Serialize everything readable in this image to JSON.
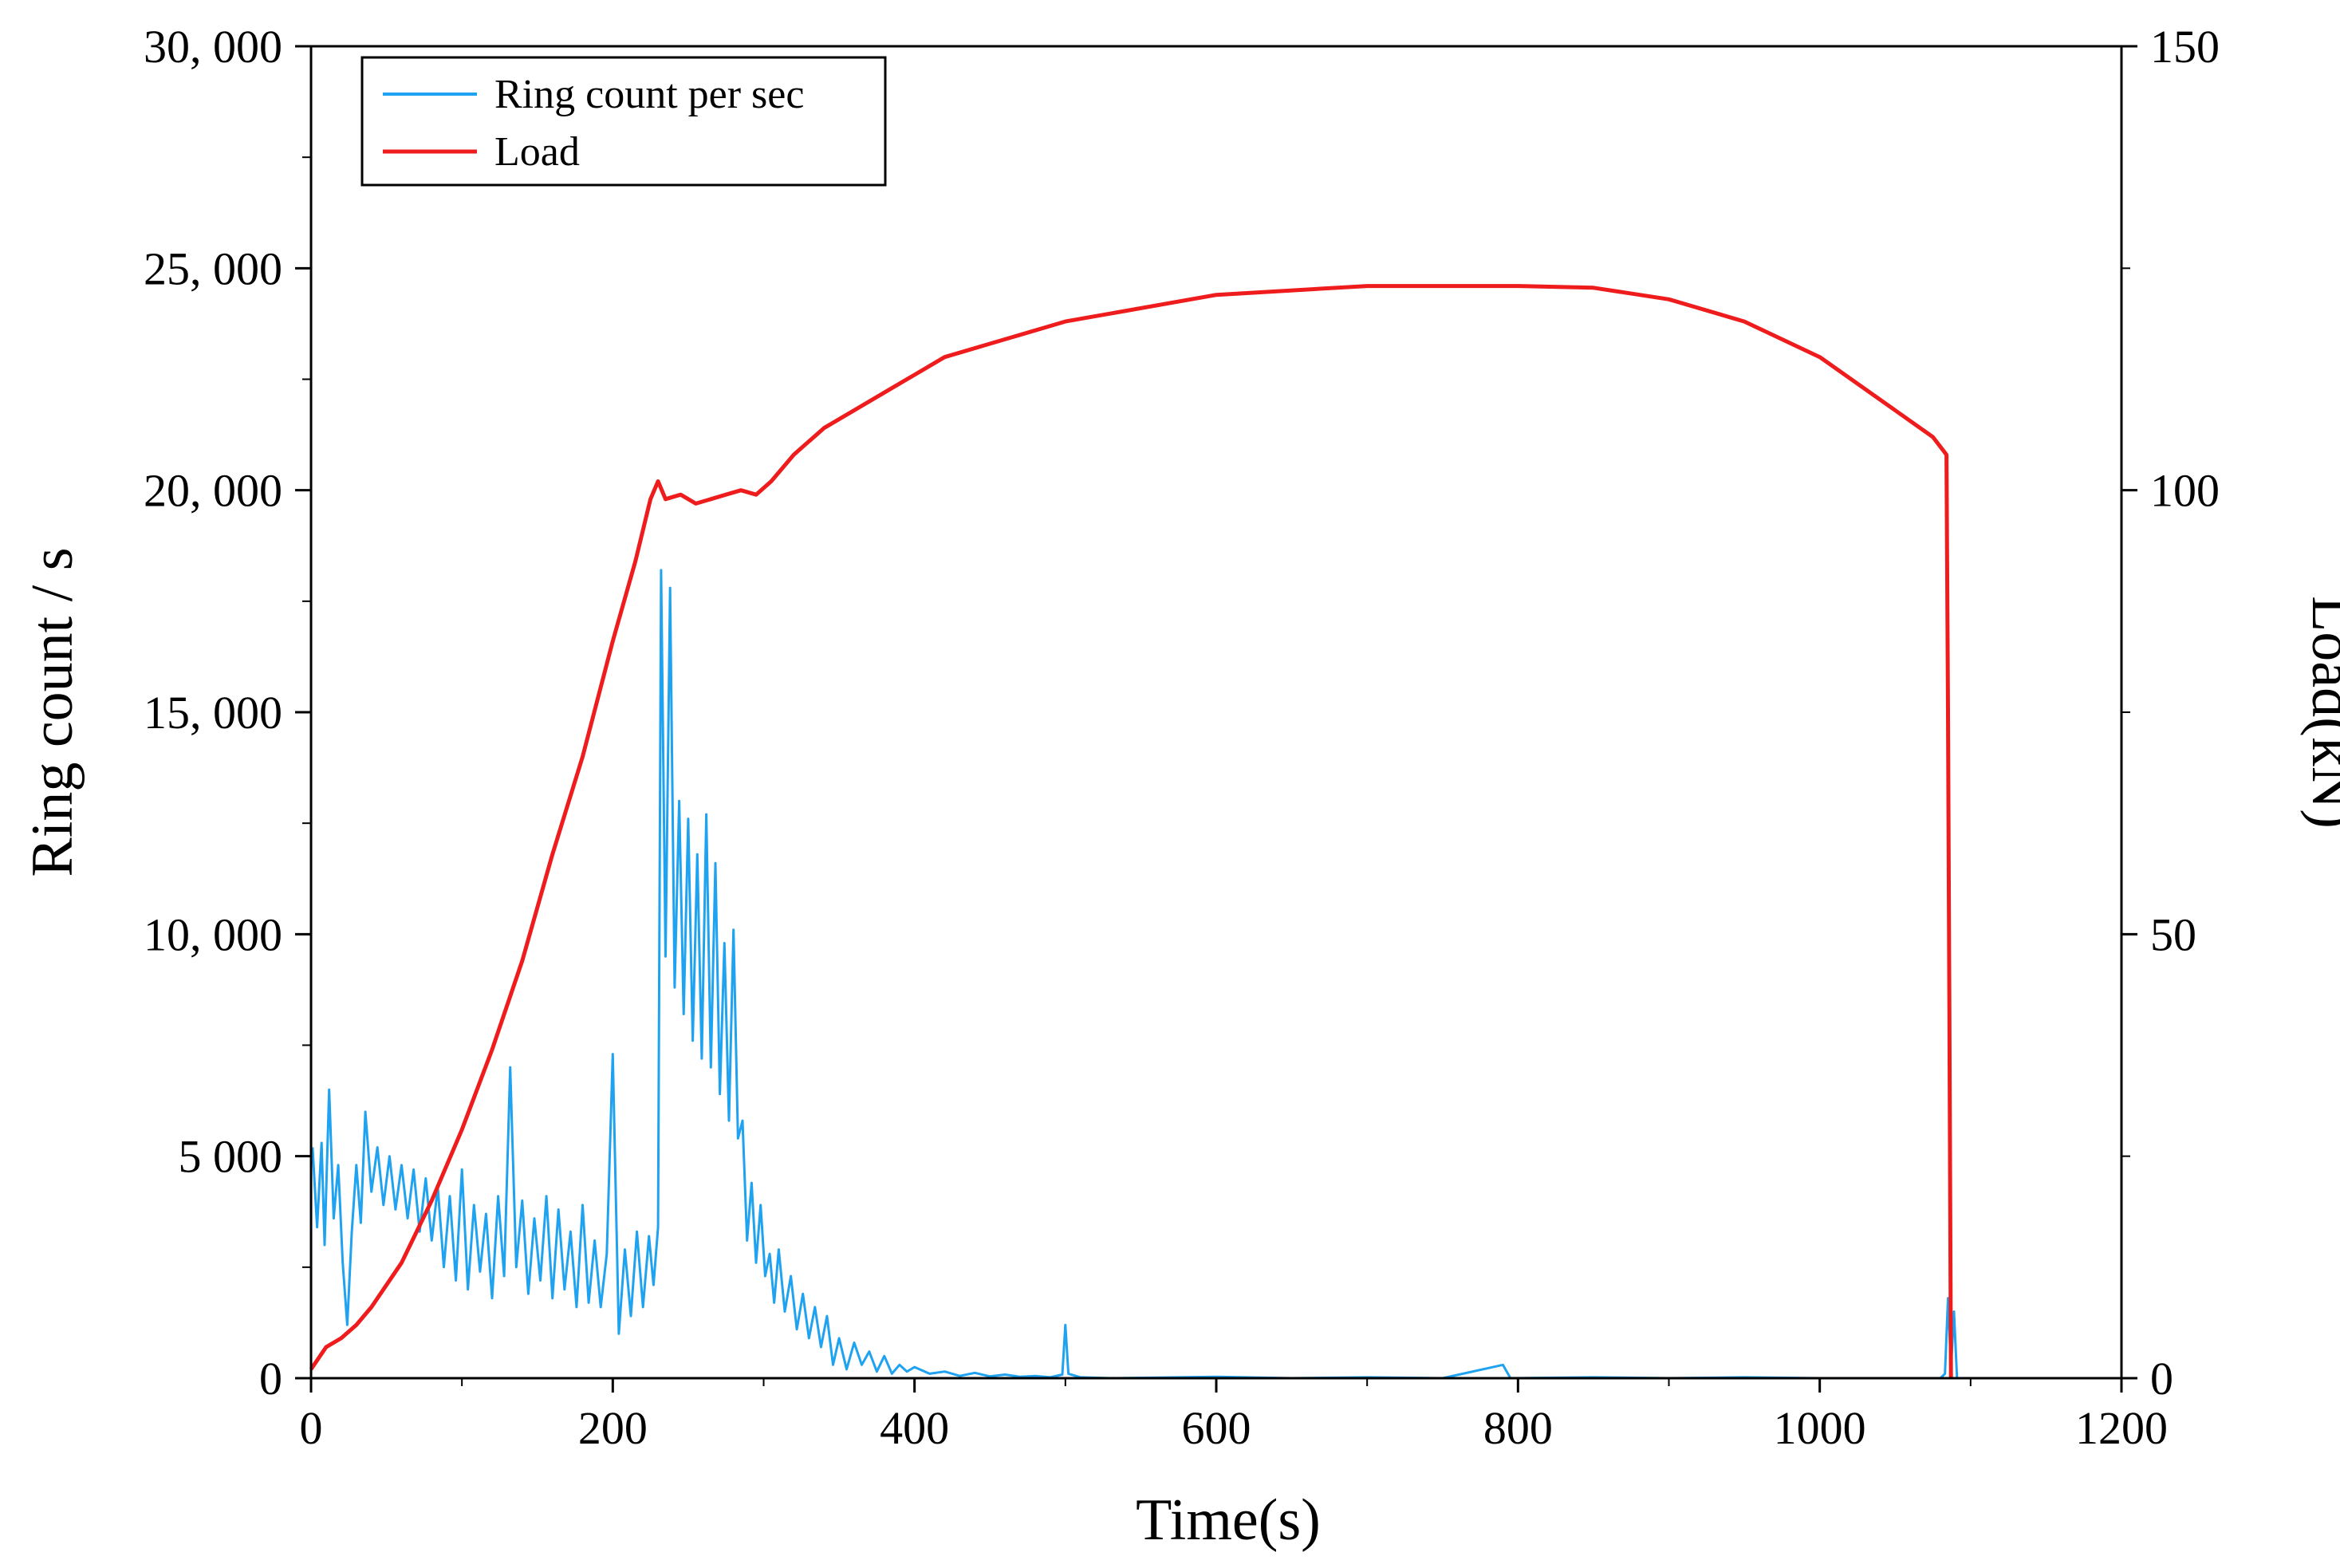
{
  "chart_data": {
    "type": "line",
    "title": "",
    "xlabel": "Time(s)",
    "ylabel_left": "Ring count  / s",
    "ylabel_right": "Load(kN)",
    "xlim": [
      0,
      1200
    ],
    "ylim_left": [
      0,
      30000
    ],
    "ylim_right": [
      0,
      150
    ],
    "x_ticks": [
      0,
      200,
      400,
      600,
      800,
      1000,
      1200
    ],
    "x_tick_labels": [
      "0",
      "200",
      "400",
      "600",
      "800",
      "1000",
      "1200"
    ],
    "y_left_ticks": [
      0,
      5000,
      10000,
      15000,
      20000,
      25000,
      30000
    ],
    "y_left_tick_labels": [
      "0",
      "5 000",
      "10, 000",
      "15, 000",
      "20, 000",
      "25, 000",
      "30, 000"
    ],
    "y_right_ticks": [
      0,
      50,
      100,
      150
    ],
    "y_right_tick_labels": [
      "0",
      "50",
      "100",
      "150"
    ],
    "grid": false,
    "legend": {
      "position": "top-left",
      "entries": [
        "Ring count per sec",
        "Load"
      ]
    },
    "colors": {
      "ring": "#1fa2f0",
      "load": "#ee1c1c",
      "axis": "#000000"
    },
    "series": [
      {
        "name": "Ring count per sec",
        "axis": "left",
        "points": [
          [
            1,
            5200
          ],
          [
            4,
            3400
          ],
          [
            7,
            5300
          ],
          [
            9,
            3000
          ],
          [
            12,
            6500
          ],
          [
            15,
            3600
          ],
          [
            18,
            4800
          ],
          [
            21,
            2600
          ],
          [
            24,
            1200
          ],
          [
            27,
            3300
          ],
          [
            30,
            4800
          ],
          [
            33,
            3500
          ],
          [
            36,
            6000
          ],
          [
            40,
            4200
          ],
          [
            44,
            5200
          ],
          [
            48,
            3900
          ],
          [
            52,
            5000
          ],
          [
            56,
            3800
          ],
          [
            60,
            4800
          ],
          [
            64,
            3600
          ],
          [
            68,
            4700
          ],
          [
            72,
            3300
          ],
          [
            76,
            4500
          ],
          [
            80,
            3100
          ],
          [
            84,
            4300
          ],
          [
            88,
            2500
          ],
          [
            92,
            4100
          ],
          [
            96,
            2200
          ],
          [
            100,
            4700
          ],
          [
            104,
            2000
          ],
          [
            108,
            3900
          ],
          [
            112,
            2400
          ],
          [
            116,
            3700
          ],
          [
            120,
            1800
          ],
          [
            124,
            4100
          ],
          [
            128,
            2300
          ],
          [
            132,
            7000
          ],
          [
            136,
            2500
          ],
          [
            140,
            4000
          ],
          [
            144,
            1900
          ],
          [
            148,
            3600
          ],
          [
            152,
            2200
          ],
          [
            156,
            4100
          ],
          [
            160,
            1800
          ],
          [
            164,
            3800
          ],
          [
            168,
            2000
          ],
          [
            172,
            3300
          ],
          [
            176,
            1600
          ],
          [
            180,
            3900
          ],
          [
            184,
            1700
          ],
          [
            188,
            3100
          ],
          [
            192,
            1600
          ],
          [
            196,
            2800
          ],
          [
            200,
            7300
          ],
          [
            204,
            1000
          ],
          [
            208,
            2900
          ],
          [
            212,
            1400
          ],
          [
            216,
            3300
          ],
          [
            220,
            1600
          ],
          [
            224,
            3200
          ],
          [
            227,
            2100
          ],
          [
            230,
            3400
          ],
          [
            232,
            18200
          ],
          [
            235,
            9500
          ],
          [
            238,
            17800
          ],
          [
            241,
            8800
          ],
          [
            244,
            13000
          ],
          [
            247,
            8200
          ],
          [
            250,
            12600
          ],
          [
            253,
            7600
          ],
          [
            256,
            11800
          ],
          [
            259,
            7200
          ],
          [
            262,
            12700
          ],
          [
            265,
            7000
          ],
          [
            268,
            11600
          ],
          [
            271,
            6400
          ],
          [
            274,
            9800
          ],
          [
            277,
            5800
          ],
          [
            280,
            10100
          ],
          [
            283,
            5400
          ],
          [
            286,
            5800
          ],
          [
            289,
            3100
          ],
          [
            292,
            4400
          ],
          [
            295,
            2600
          ],
          [
            298,
            3900
          ],
          [
            301,
            2300
          ],
          [
            304,
            2800
          ],
          [
            307,
            1700
          ],
          [
            310,
            2900
          ],
          [
            314,
            1500
          ],
          [
            318,
            2300
          ],
          [
            322,
            1100
          ],
          [
            326,
            1900
          ],
          [
            330,
            900
          ],
          [
            334,
            1600
          ],
          [
            338,
            700
          ],
          [
            342,
            1400
          ],
          [
            346,
            300
          ],
          [
            350,
            900
          ],
          [
            355,
            200
          ],
          [
            360,
            800
          ],
          [
            365,
            300
          ],
          [
            370,
            600
          ],
          [
            375,
            150
          ],
          [
            380,
            500
          ],
          [
            385,
            100
          ],
          [
            390,
            300
          ],
          [
            395,
            150
          ],
          [
            400,
            250
          ],
          [
            410,
            100
          ],
          [
            420,
            150
          ],
          [
            430,
            50
          ],
          [
            440,
            120
          ],
          [
            450,
            40
          ],
          [
            460,
            80
          ],
          [
            470,
            30
          ],
          [
            480,
            50
          ],
          [
            490,
            20
          ],
          [
            498,
            80
          ],
          [
            500,
            1200
          ],
          [
            502,
            100
          ],
          [
            510,
            20
          ],
          [
            530,
            0
          ],
          [
            600,
            30
          ],
          [
            650,
            0
          ],
          [
            700,
            20
          ],
          [
            750,
            0
          ],
          [
            790,
            300
          ],
          [
            795,
            0
          ],
          [
            850,
            20
          ],
          [
            900,
            0
          ],
          [
            950,
            20
          ],
          [
            1000,
            0
          ],
          [
            1050,
            0
          ],
          [
            1080,
            0
          ],
          [
            1083,
            100
          ],
          [
            1085,
            1800
          ],
          [
            1087,
            200
          ],
          [
            1089,
            1500
          ],
          [
            1091,
            0
          ],
          [
            1100,
            0
          ]
        ]
      },
      {
        "name": "Load",
        "axis": "right",
        "points": [
          [
            0,
            1
          ],
          [
            10,
            3.5
          ],
          [
            20,
            4.5
          ],
          [
            30,
            6
          ],
          [
            40,
            8
          ],
          [
            60,
            13
          ],
          [
            80,
            20
          ],
          [
            100,
            28
          ],
          [
            120,
            37
          ],
          [
            140,
            47
          ],
          [
            160,
            59
          ],
          [
            180,
            70
          ],
          [
            200,
            83
          ],
          [
            215,
            92
          ],
          [
            225,
            99
          ],
          [
            230,
            101
          ],
          [
            235,
            99
          ],
          [
            245,
            99.5
          ],
          [
            255,
            98.5
          ],
          [
            265,
            99
          ],
          [
            275,
            99.5
          ],
          [
            285,
            100
          ],
          [
            295,
            99.5
          ],
          [
            305,
            101
          ],
          [
            320,
            104
          ],
          [
            340,
            107
          ],
          [
            380,
            111
          ],
          [
            420,
            115
          ],
          [
            500,
            119
          ],
          [
            600,
            122
          ],
          [
            700,
            123
          ],
          [
            800,
            123
          ],
          [
            850,
            122.8
          ],
          [
            900,
            121.5
          ],
          [
            950,
            119
          ],
          [
            1000,
            115
          ],
          [
            1050,
            109
          ],
          [
            1075,
            106
          ],
          [
            1084,
            104
          ],
          [
            1085,
            75
          ],
          [
            1086,
            40
          ],
          [
            1087,
            0
          ]
        ]
      }
    ]
  }
}
